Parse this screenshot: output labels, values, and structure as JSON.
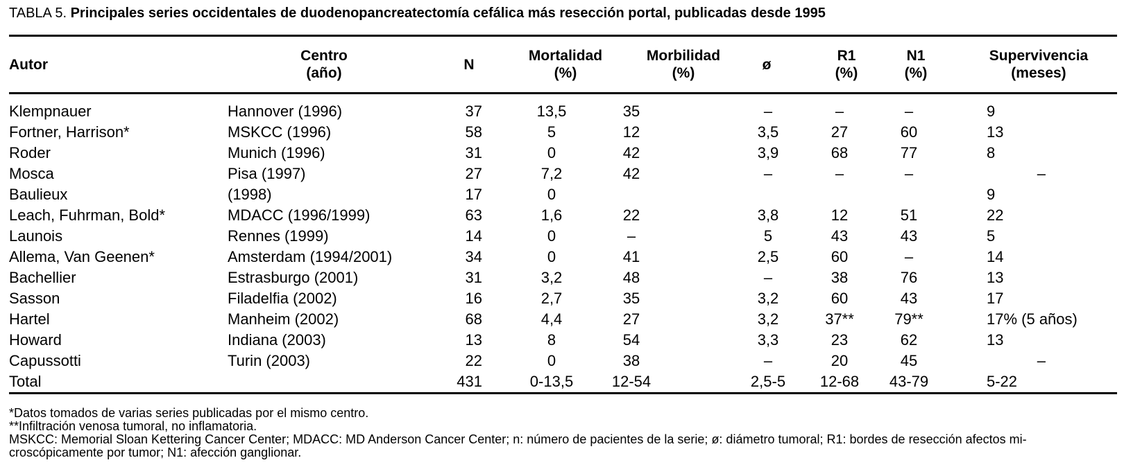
{
  "title": {
    "label": "TABLA 5.",
    "text": "Principales series occidentales de duodenopancreatectomía cefálica más resección portal, publicadas desde 1995"
  },
  "table": {
    "columns": [
      {
        "key": "autor",
        "label": "Autor",
        "lines": [
          "Autor"
        ]
      },
      {
        "key": "centro",
        "label": "Centro (año)",
        "lines": [
          "Centro",
          "(año)"
        ]
      },
      {
        "key": "n",
        "label": "N",
        "lines": [
          "N"
        ]
      },
      {
        "key": "mortalidad",
        "label": "Mortalidad (%)",
        "lines": [
          "Mortalidad",
          "(%)"
        ]
      },
      {
        "key": "morbilidad",
        "label": "Morbilidad (%)",
        "lines": [
          "Morbilidad",
          "(%)"
        ]
      },
      {
        "key": "diametro",
        "label": "ø",
        "lines": [
          "ø"
        ]
      },
      {
        "key": "r1",
        "label": "R1 (%)",
        "lines": [
          "R1",
          "(%)"
        ]
      },
      {
        "key": "n1",
        "label": "N1 (%)",
        "lines": [
          "N1",
          "(%)"
        ]
      },
      {
        "key": "supervivencia",
        "label": "Supervivencia (meses)",
        "lines": [
          "Supervivencia",
          "(meses)"
        ]
      }
    ],
    "rows": [
      [
        "Klempnauer",
        "Hannover (1996)",
        "37",
        "13,5",
        "35",
        "–",
        "–",
        "–",
        "9"
      ],
      [
        "Fortner, Harrison*",
        "MSKCC (1996)",
        "58",
        "5",
        "12",
        "3,5",
        "27",
        "60",
        "13"
      ],
      [
        "Roder",
        "Munich (1996)",
        "31",
        "0",
        "42",
        "3,9",
        "68",
        "77",
        "8"
      ],
      [
        "Mosca",
        "Pisa (1997)",
        "27",
        "7,2",
        "42",
        "–",
        "–",
        "–",
        "–"
      ],
      [
        "Baulieux",
        "(1998)",
        "17",
        "0",
        "",
        "",
        "",
        "",
        "9"
      ],
      [
        "Leach, Fuhrman, Bold*",
        "MDACC (1996/1999)",
        "63",
        "1,6",
        "22",
        "3,8",
        "12",
        "51",
        "22"
      ],
      [
        "Launois",
        "Rennes (1999)",
        "14",
        "0",
        "–",
        "5",
        "43",
        "43",
        "5"
      ],
      [
        "Allema, Van Geenen*",
        "Amsterdam (1994/2001)",
        "34",
        "0",
        "41",
        "2,5",
        "60",
        "–",
        "14"
      ],
      [
        "Bachellier",
        "Estrasburgo (2001)",
        "31",
        "3,2",
        "48",
        "–",
        "38",
        "76",
        "13"
      ],
      [
        "Sasson",
        "Filadelfia (2002)",
        "16",
        "2,7",
        "35",
        "3,2",
        "60",
        "43",
        "17"
      ],
      [
        "Hartel",
        "Manheim (2002)",
        "68",
        "4,4",
        "27",
        "3,2",
        "37**",
        "79**",
        "17% (5 años)"
      ],
      [
        "Howard",
        "Indiana (2003)",
        "13",
        "8",
        "54",
        "3,3",
        "23",
        "62",
        "13"
      ],
      [
        "Capussotti",
        "Turin (2003)",
        "22",
        "0",
        "38",
        "–",
        "20",
        "45",
        "–"
      ],
      [
        "Total",
        "",
        "431",
        "0-13,5",
        "12-54",
        "2,5-5",
        "12-68",
        "43-79",
        "5-22"
      ]
    ]
  },
  "footnotes": [
    "*Datos tomados de varias series publicadas por el mismo centro.",
    "**Infiltración venosa tumoral, no inflamatoria.",
    "MSKCC: Memorial Sloan Kettering Cancer Center; MDACC: MD Anderson Cancer Center; n: número de pacientes de la serie; ø: diámetro tumoral; R1: bordes de resección afectos mi-",
    "croscópicamente por tumor; N1: afección ganglionar."
  ],
  "colors": {
    "text": "#000000",
    "background": "#ffffff",
    "rule": "#000000"
  }
}
